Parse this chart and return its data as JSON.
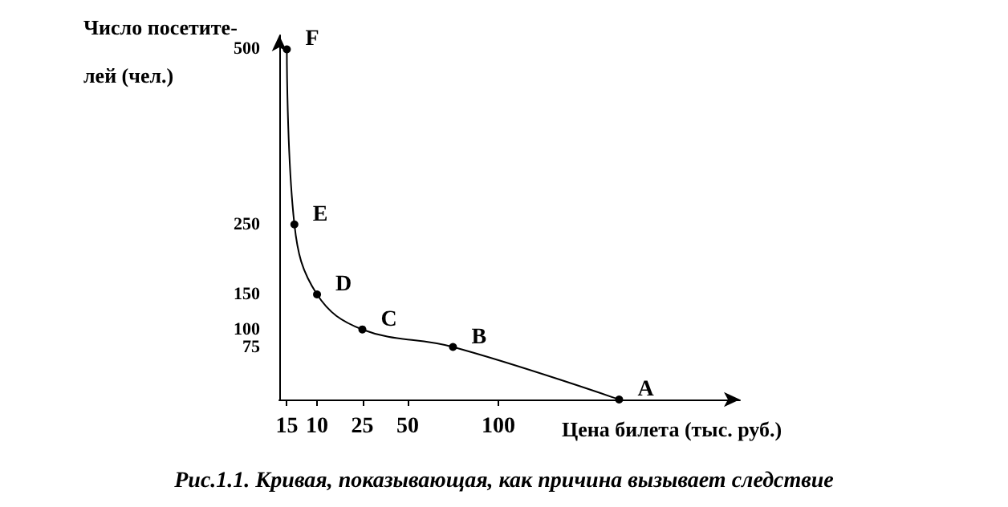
{
  "chart_data": {
    "type": "line",
    "title": "Рис.1.1. Кривая, показывающая, как причина вызывает следствие",
    "ylabel": "Число посетите-\nлей (чел.)",
    "xlabel": "Цена билета (тыс. руб.)",
    "categories": [
      null,
      "15",
      null,
      null,
      null,
      "10",
      null,
      null,
      null,
      null,
      null,
      "25",
      null,
      null,
      null,
      null,
      null,
      "50",
      null,
      null,
      null,
      null,
      null,
      null,
      null,
      null,
      null,
      null,
      null,
      "100",
      null,
      null,
      null,
      null,
      null,
      null,
      null,
      null,
      null,
      null,
      null,
      null,
      null,
      null,
      null,
      null,
      null,
      null,
      null,
      null,
      null,
      null,
      null,
      null,
      null,
      null,
      null,
      null,
      null,
      null,
      null,
      null
    ],
    "series": [
      {
        "color": "#000000",
        "values": [
          null,
          500,
          250,
          null,
          null,
          150,
          null,
          null,
          null,
          null,
          null,
          100,
          null,
          null,
          null,
          null,
          null,
          null,
          null,
          null,
          null,
          null,
          null,
          75,
          null,
          null,
          null,
          null,
          null,
          null,
          null,
          null,
          null,
          null,
          null,
          null,
          null,
          null,
          null,
          null,
          null,
          null,
          null,
          null,
          null,
          0,
          null,
          null,
          null,
          null,
          null,
          null,
          null,
          null,
          null,
          null,
          null,
          null,
          null,
          null,
          null,
          null
        ],
        "value_labels": [
          null,
          "F",
          "E",
          null,
          null,
          "D",
          null,
          null,
          null,
          null,
          null,
          "C",
          null,
          null,
          null,
          null,
          null,
          null,
          null,
          null,
          null,
          null,
          null,
          "B",
          null,
          null,
          null,
          null,
          null,
          null,
          null,
          null,
          null,
          null,
          null,
          null,
          null,
          null,
          null,
          null,
          null,
          null,
          null,
          null,
          null,
          "A",
          null,
          null,
          null,
          null,
          null,
          null,
          null,
          null,
          null,
          null,
          null,
          null,
          null,
          null,
          null,
          null
        ]
      }
    ],
    "ylim": [
      0,
      520
    ],
    "yticks": [
      75,
      100,
      150,
      250,
      500
    ],
    "grid": false,
    "marker": "circle",
    "line_style": "solid"
  }
}
